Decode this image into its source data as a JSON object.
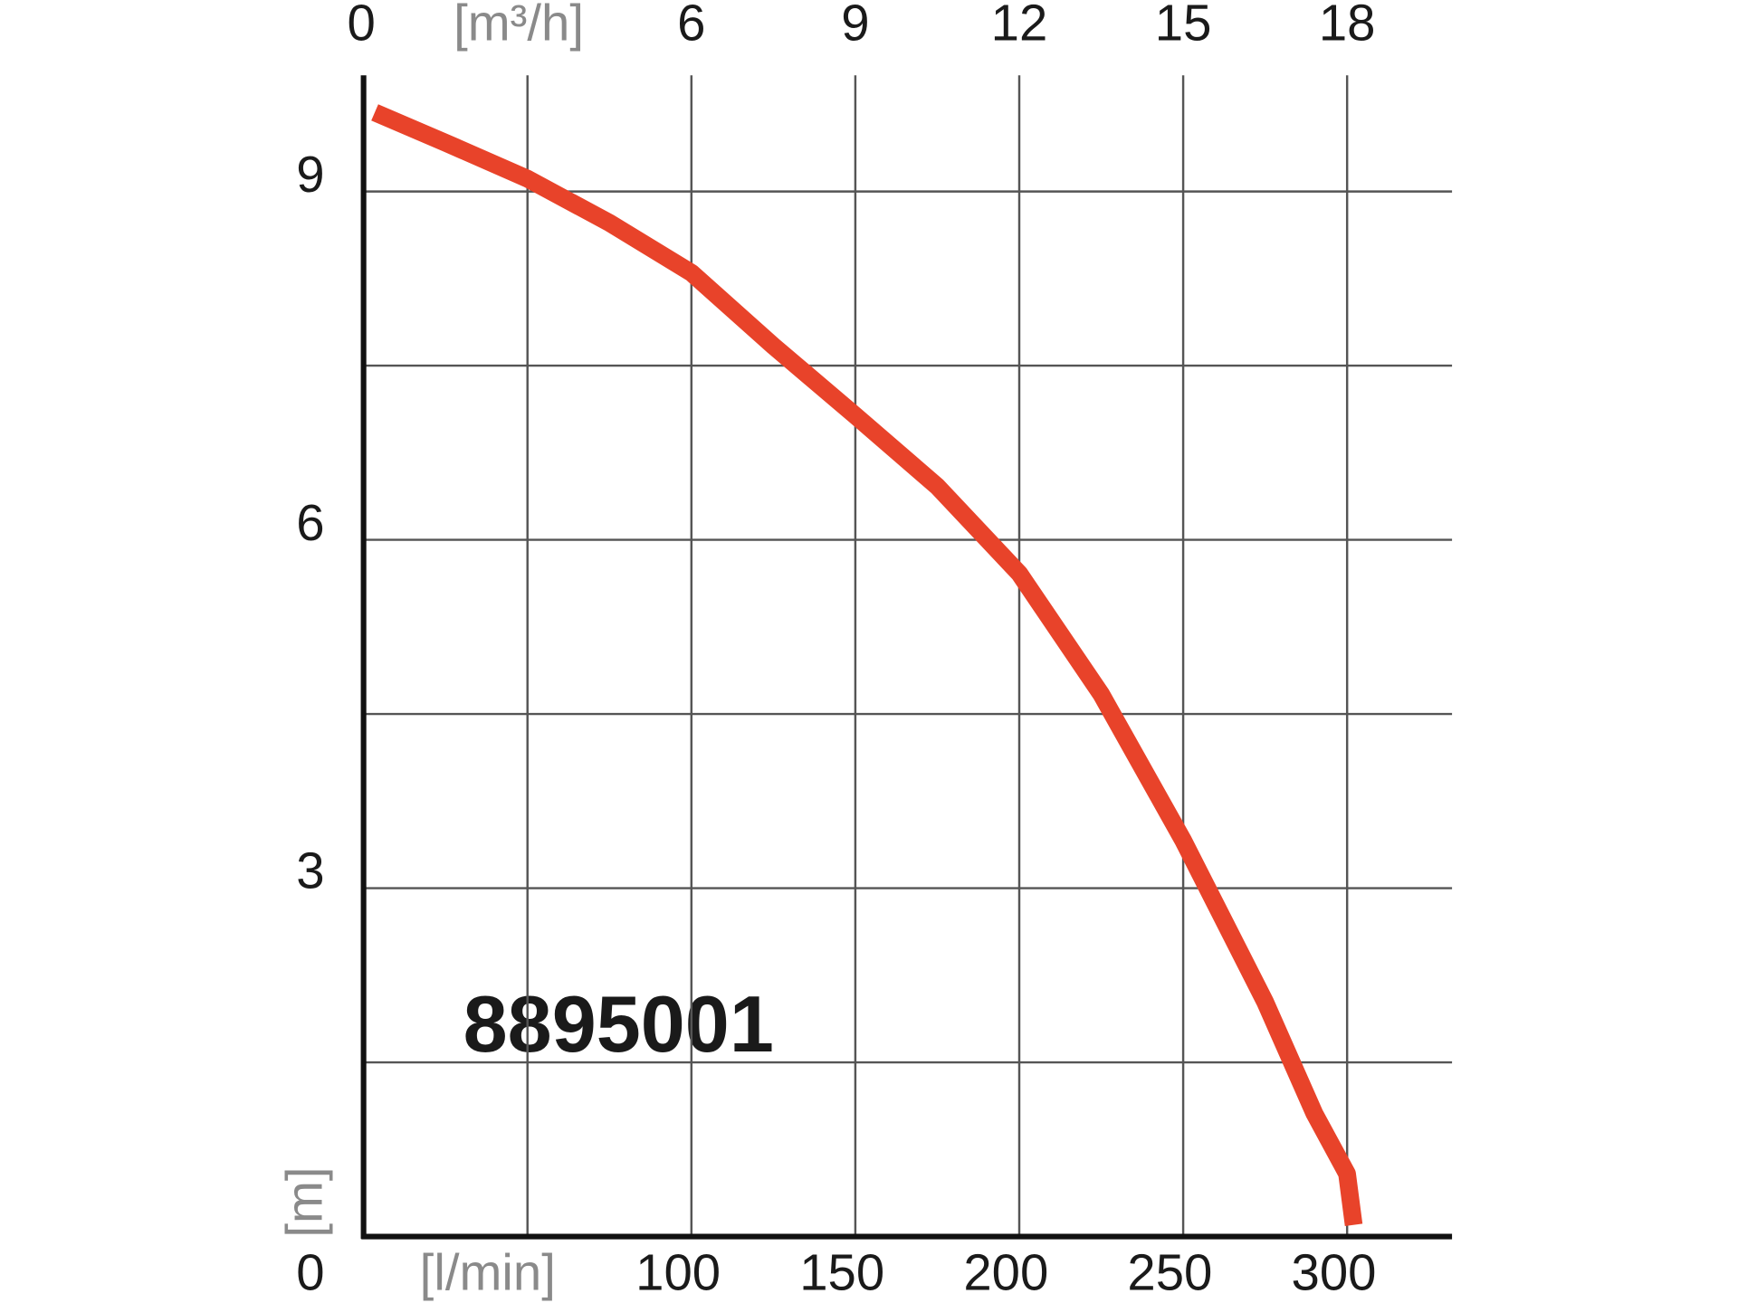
{
  "chart_data": {
    "type": "line",
    "label": "8895001",
    "x_unit": "[l/min]",
    "x2_unit": "[m³/h]",
    "y_unit": "[m]",
    "x": [
      3.4,
      25,
      50,
      75,
      100,
      125,
      150,
      175,
      200,
      225,
      250,
      275,
      290,
      300,
      302
    ],
    "series": [
      {
        "color": "#e8432a",
        "values": [
          9.68,
          9.42,
          9.11,
          8.73,
          8.3,
          7.67,
          7.07,
          6.46,
          5.71,
          4.67,
          3.41,
          2.02,
          1.06,
          0.54,
          0.1
        ]
      }
    ],
    "xlim": [
      0,
      332
    ],
    "xticks": [
      100,
      150,
      200,
      250,
      300
    ],
    "xgrid": [
      50,
      100,
      150,
      200,
      250,
      300
    ],
    "x2lim": [
      0,
      19.92
    ],
    "x2ticks": [
      0,
      6,
      9,
      12,
      15,
      18
    ],
    "ylim": [
      0,
      10
    ],
    "yticks": [
      0,
      3,
      6,
      9
    ],
    "ygrid": [
      1.5,
      3,
      4.5,
      6,
      7.5,
      9
    ],
    "grid": true
  }
}
